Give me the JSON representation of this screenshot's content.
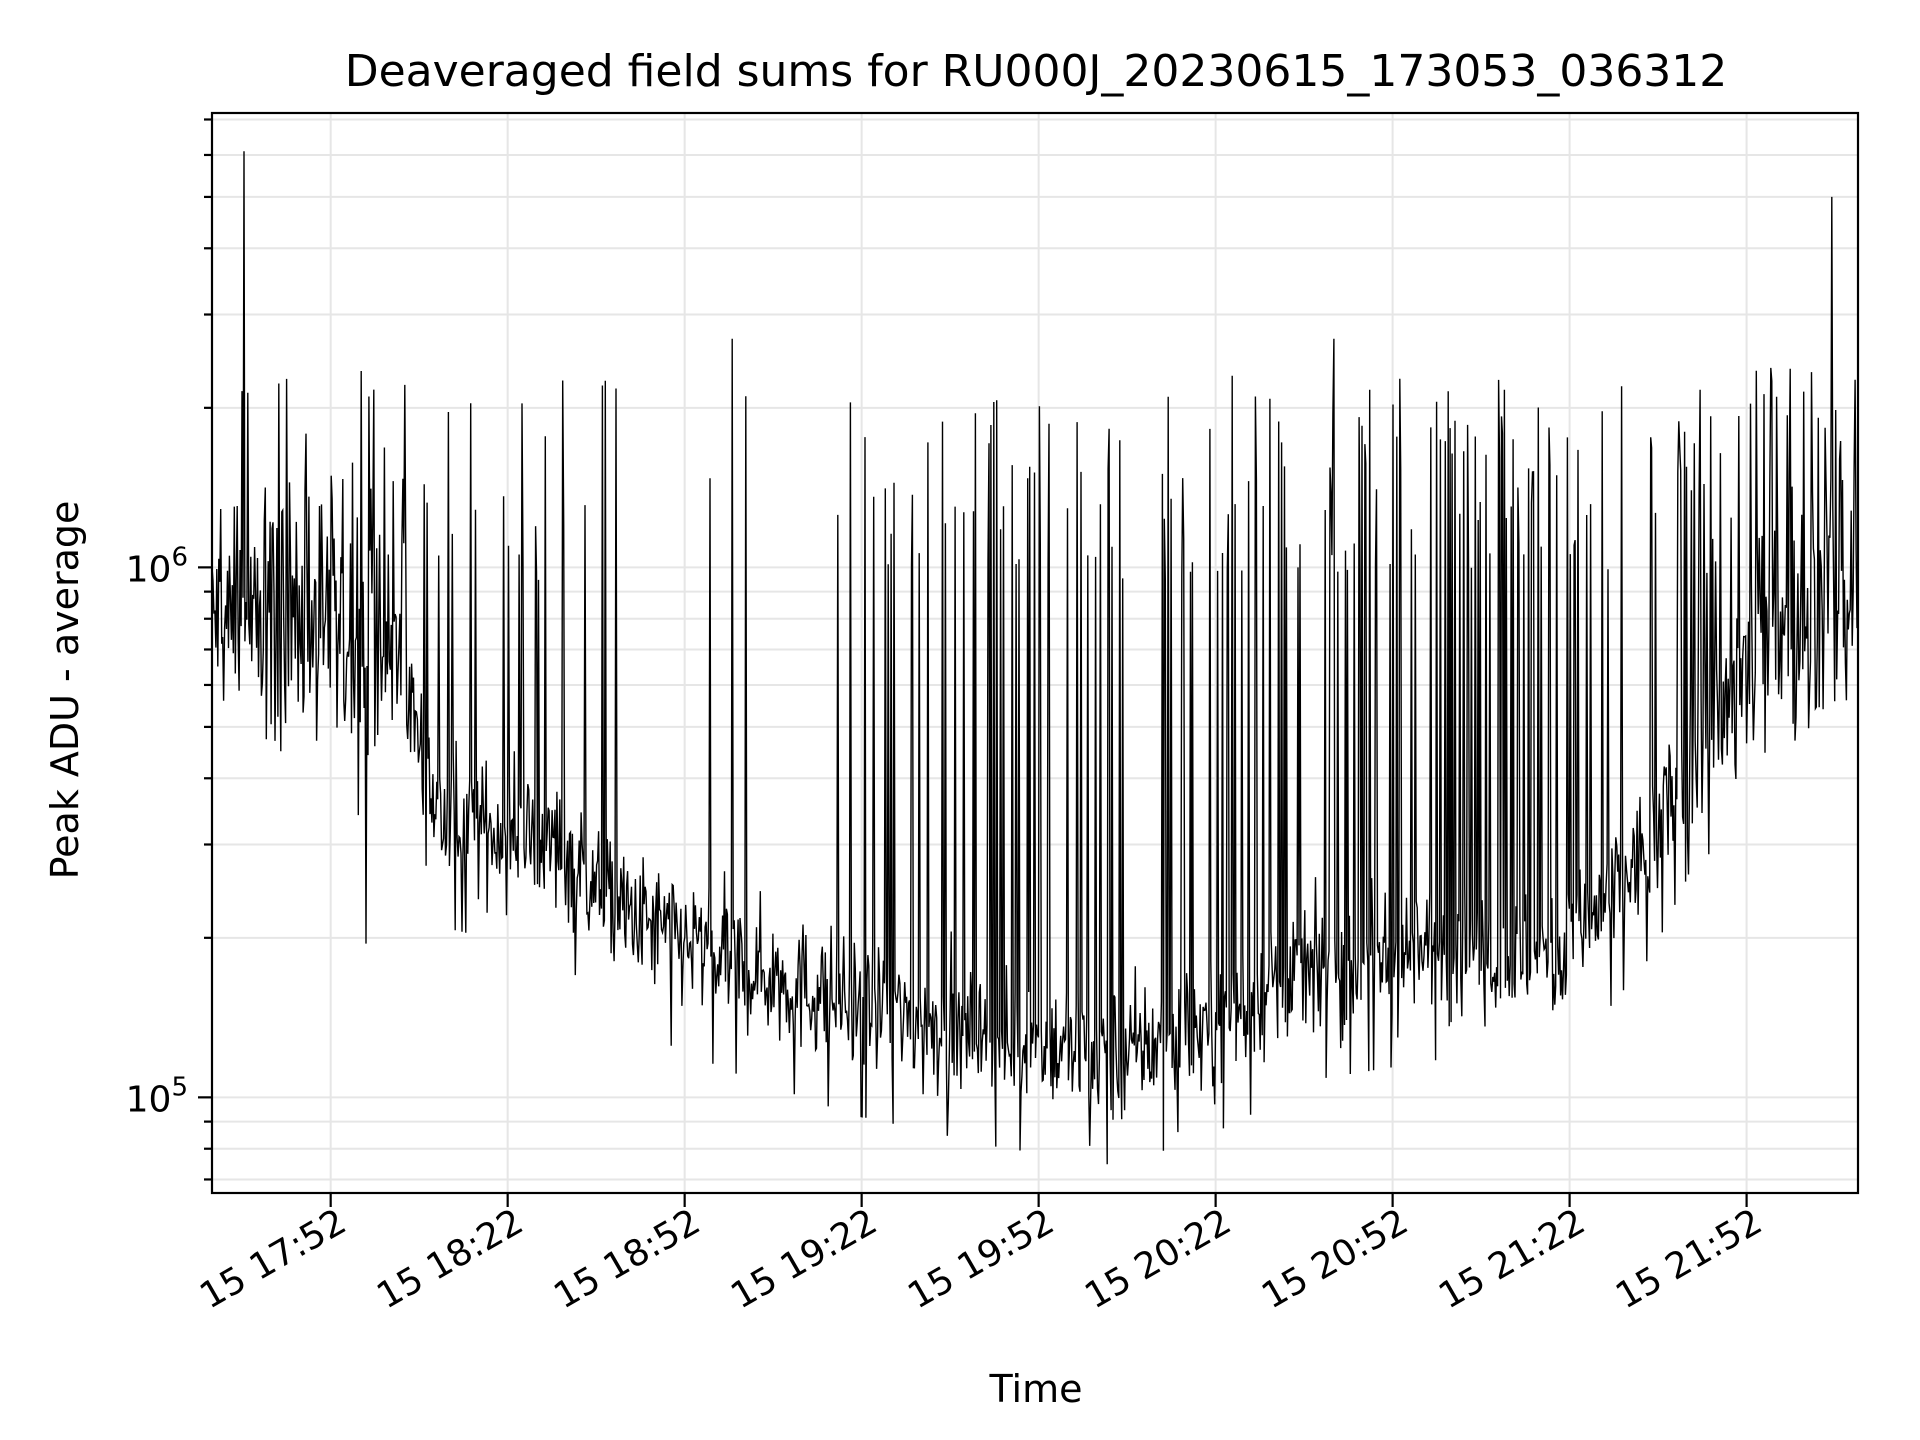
{
  "chart_data": {
    "type": "line",
    "title": "Deaveraged field sums for RU000J_20230615_173053_036312",
    "xlabel": "Time",
    "ylabel": "Peak ADU - average",
    "yscale": "log",
    "grid": true,
    "x_ticks": [
      "15 17:52",
      "15 18:22",
      "15 18:52",
      "15 19:22",
      "15 19:52",
      "15 20:22",
      "15 20:52",
      "15 21:22",
      "15 21:52"
    ],
    "y_ticks": [
      {
        "base": "10",
        "exp": "5",
        "value": 100000
      },
      {
        "base": "10",
        "exp": "6",
        "value": 1000000
      }
    ],
    "xlim": [
      "2023-06-15 17:31:53",
      "2023-06-15 22:10:53"
    ],
    "ylim": [
      66000,
      7200000
    ],
    "line_color": "#000000",
    "baseline_profile": {
      "times": [
        "2023-06-15 17:31:53",
        "2023-06-15 17:45:00",
        "2023-06-15 18:04:00",
        "2023-06-15 18:10:00",
        "2023-06-15 18:30:00",
        "2023-06-15 18:42:00",
        "2023-06-15 19:00:00",
        "2023-06-15 19:20:00",
        "2023-06-15 19:45:00",
        "2023-06-15 20:05:00",
        "2023-06-15 20:20:00",
        "2023-06-15 20:40:00",
        "2023-06-15 21:00:00",
        "2023-06-15 21:20:00",
        "2023-06-15 21:36:00",
        "2023-06-15 21:42:00",
        "2023-06-15 21:55:00",
        "2023-06-15 22:10:53"
      ],
      "values": [
        800000,
        750000,
        650000,
        340000,
        300000,
        220000,
        180000,
        150000,
        130000,
        120000,
        135000,
        175000,
        190000,
        180000,
        300000,
        420000,
        720000,
        850000
      ]
    },
    "notable_peaks": [
      {
        "time": "2023-06-15 17:37:20",
        "value": 6100000
      },
      {
        "time": "2023-06-15 22:06:30",
        "value": 5000000
      },
      {
        "time": "2023-06-15 20:42:00",
        "value": 2700000
      },
      {
        "time": "2023-06-15 19:00:00",
        "value": 2700000
      },
      {
        "time": "2023-06-15 18:38:30",
        "value": 2250000
      }
    ],
    "notable_minima": [
      {
        "time": "2023-06-15 20:00:40",
        "value": 81000
      },
      {
        "time": "2023-06-15 20:15:40",
        "value": 86000
      },
      {
        "time": "2023-06-15 17:58:00",
        "value": 195000
      }
    ]
  }
}
